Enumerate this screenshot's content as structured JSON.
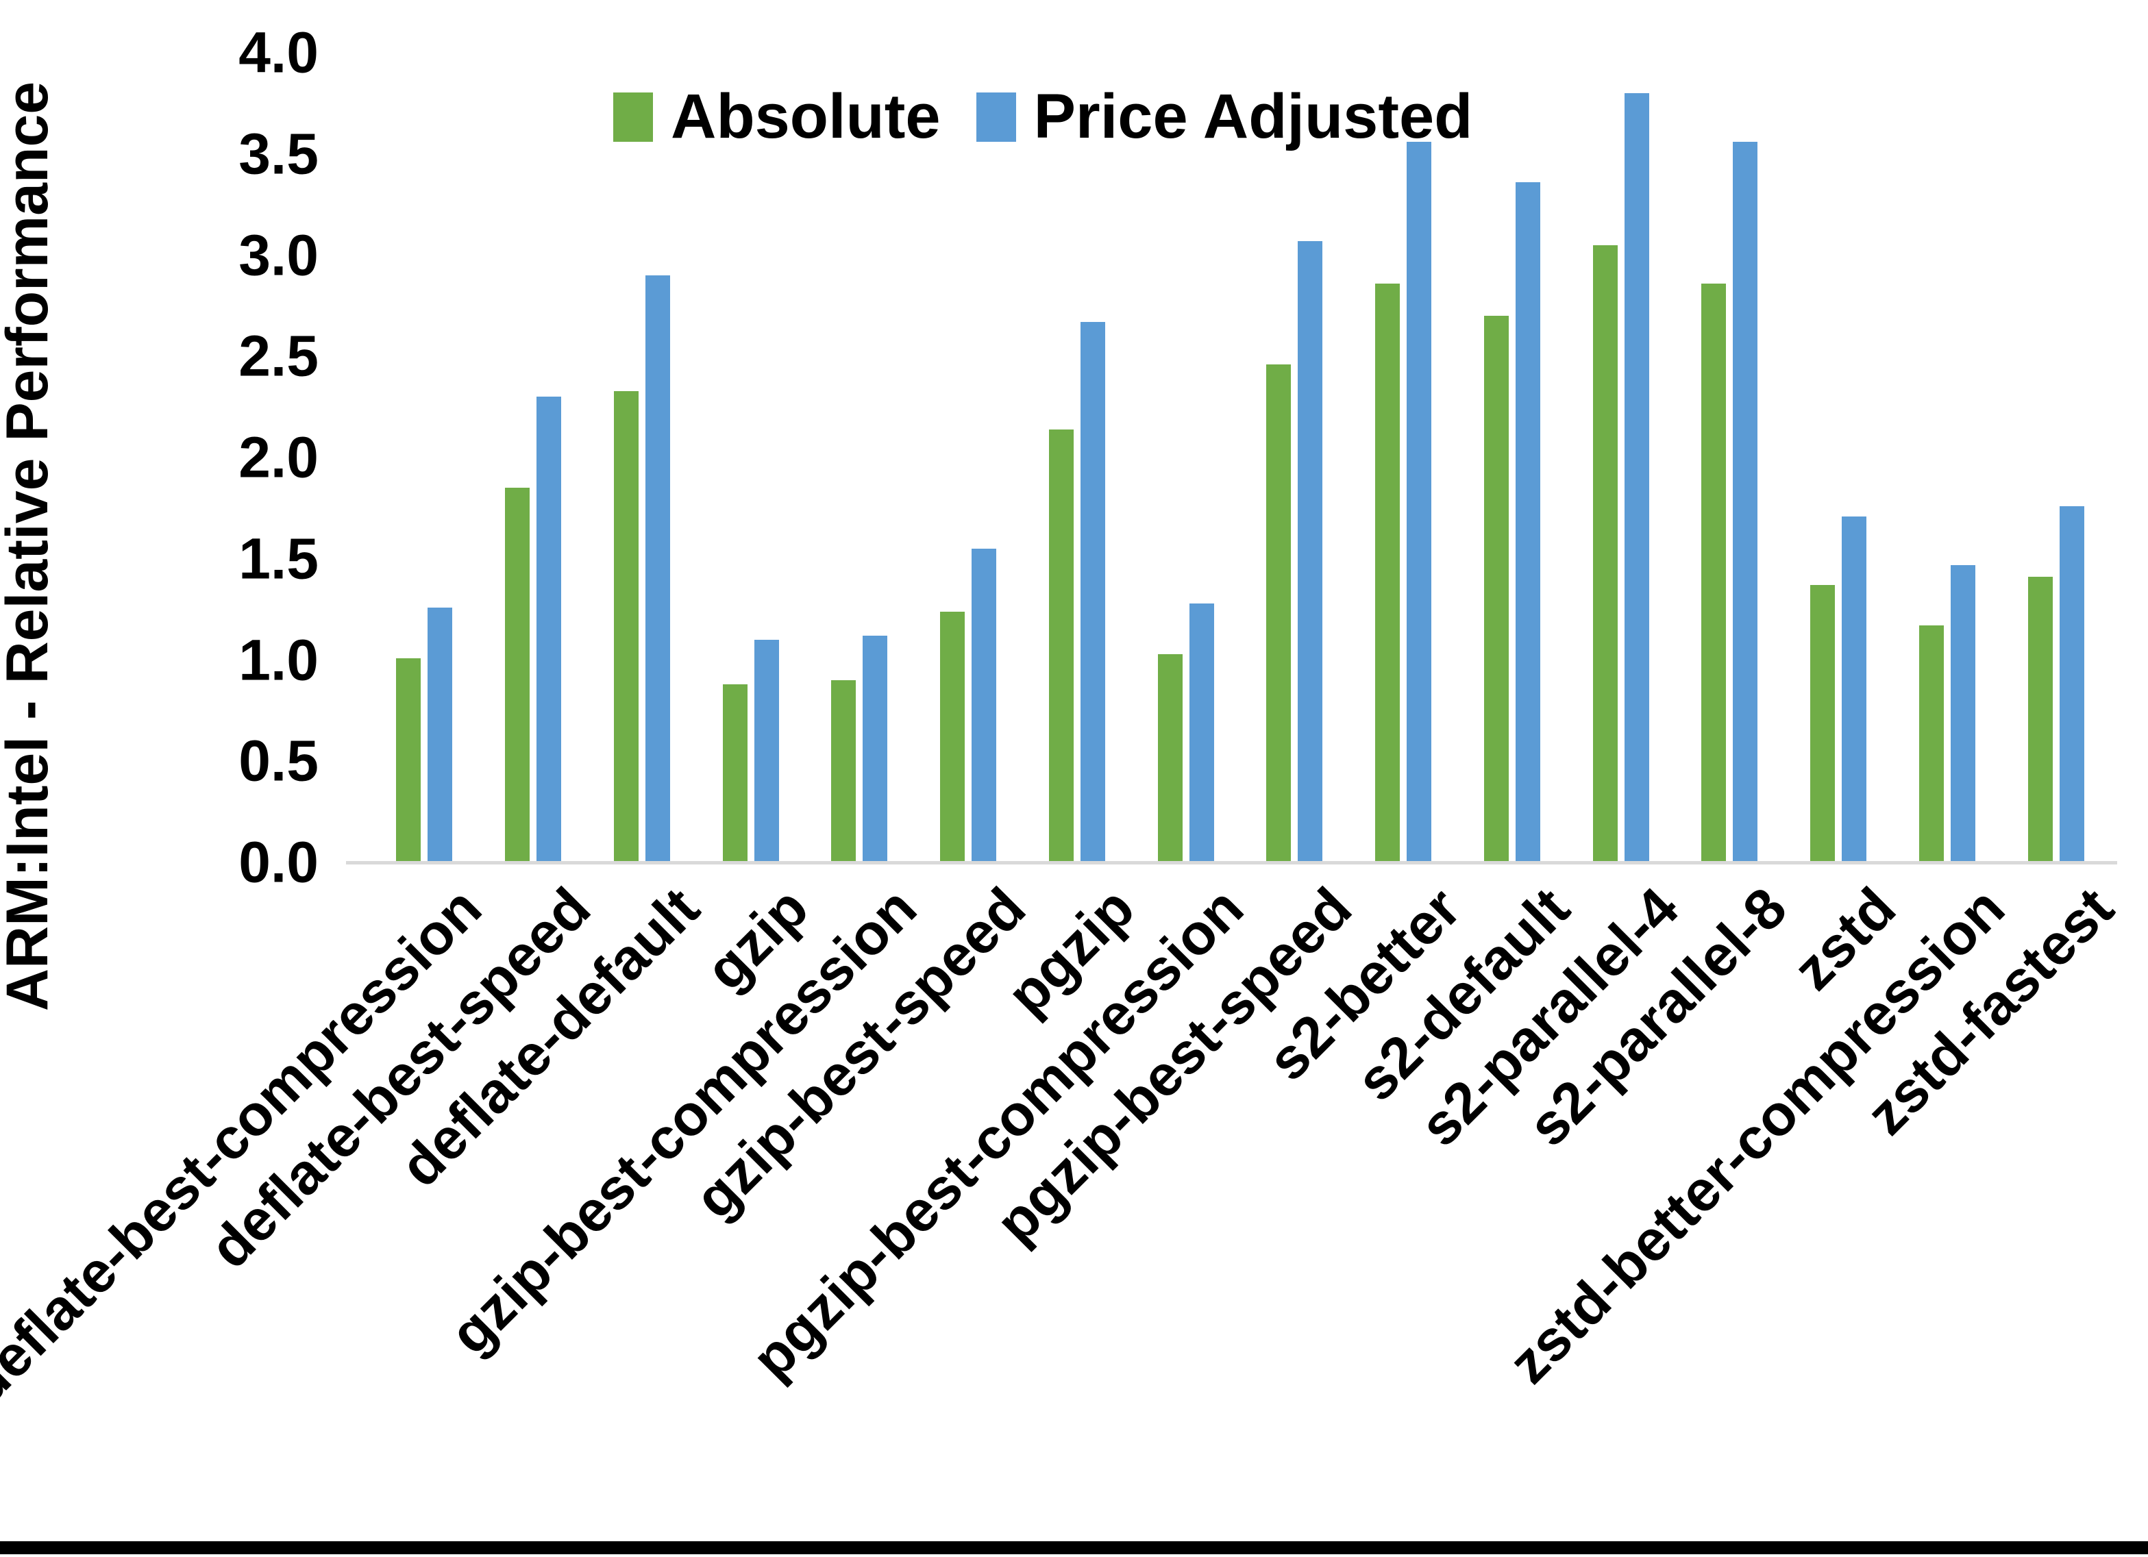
{
  "page": {
    "background": "#ffffff",
    "bottom_bar_color": "#000000"
  },
  "chart_data": {
    "type": "bar",
    "title": "",
    "xlabel": "",
    "ylabel": "ARM:Intel - Relative Performance",
    "ylim": [
      0.0,
      4.0
    ],
    "ytick_step": 0.5,
    "yticks": [
      "0.0",
      "0.5",
      "1.0",
      "1.5",
      "2.0",
      "2.5",
      "3.0",
      "3.5",
      "4.0"
    ],
    "grid": false,
    "legend_position": "top-center",
    "axis_line_color": "#d9d9d9",
    "categories": [
      "deflate-best-compression",
      "deflate-best-speed",
      "deflate-default",
      "gzip",
      "gzip-best-compression",
      "gzip-best-speed",
      "pgzip",
      "pgzip-best-compression",
      "pgzip-best-speed",
      "s2-better",
      "s2-default",
      "s2-parallel-4",
      "s2-parallel-8",
      "zstd",
      "zstd-better-compression",
      "zstd-fastest"
    ],
    "series": [
      {
        "name": "Absolute",
        "color": "#70AD47",
        "values": [
          1.01,
          1.85,
          2.33,
          0.88,
          0.9,
          1.24,
          2.14,
          1.03,
          2.46,
          2.86,
          2.7,
          3.05,
          2.86,
          1.37,
          1.17,
          1.41
        ]
      },
      {
        "name": "Price Adjusted",
        "color": "#5B9BD5",
        "values": [
          1.26,
          2.3,
          2.9,
          1.1,
          1.12,
          1.55,
          2.67,
          1.28,
          3.07,
          3.56,
          3.36,
          3.8,
          3.56,
          1.71,
          1.47,
          1.76
        ]
      }
    ]
  }
}
